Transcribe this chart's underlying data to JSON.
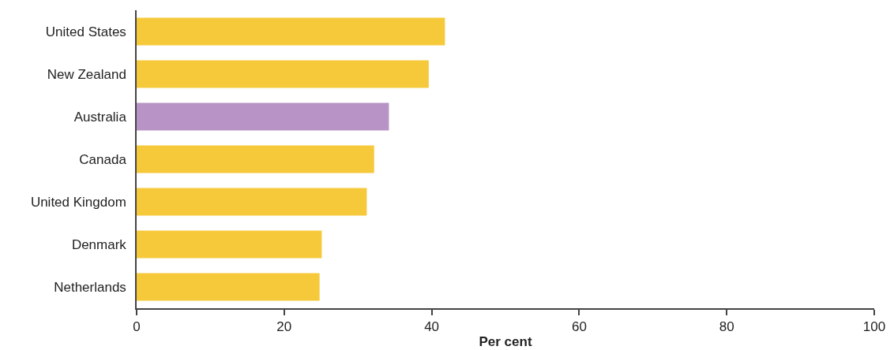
{
  "chart_data": {
    "type": "bar",
    "orientation": "horizontal",
    "categories": [
      "United States",
      "New Zealand",
      "Australia",
      "Canada",
      "United Kingdom",
      "Denmark",
      "Netherlands"
    ],
    "values": [
      41.8,
      39.6,
      34.2,
      32.2,
      31.2,
      25.1,
      24.8
    ],
    "colors": [
      "#f6c93b",
      "#f6c93b",
      "#b893c5",
      "#f6c93b",
      "#f6c93b",
      "#f6c93b",
      "#f6c93b"
    ],
    "xlabel": "Per cent",
    "xlim": [
      0,
      100
    ],
    "xticks": [
      0,
      20,
      40,
      60,
      80,
      100
    ]
  }
}
